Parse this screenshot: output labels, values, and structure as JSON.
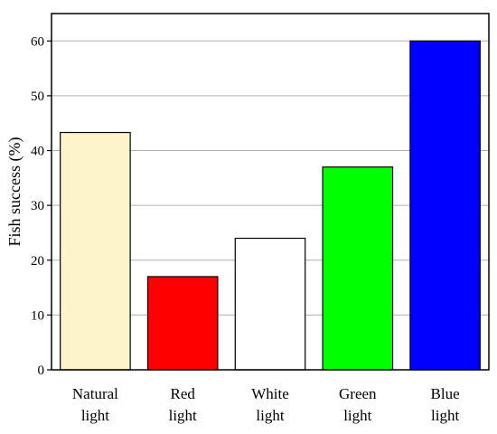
{
  "chart_data": {
    "type": "bar",
    "categories": [
      [
        "Natural",
        "light"
      ],
      [
        "Red",
        "light"
      ],
      [
        "White",
        "light"
      ],
      [
        "Green",
        "light"
      ],
      [
        "Blue",
        "light"
      ]
    ],
    "values": [
      43.3,
      17,
      24,
      37,
      60
    ],
    "colors": [
      "#fdf5c9",
      "#ff0000",
      "#ffffff",
      "#00ff00",
      "#0000ff"
    ],
    "ylabel": "Fish success (%)",
    "ylim": [
      0,
      65
    ],
    "yticks": [
      0,
      10,
      20,
      30,
      40,
      50,
      60
    ],
    "grid": "horizontal",
    "legend": "none"
  }
}
